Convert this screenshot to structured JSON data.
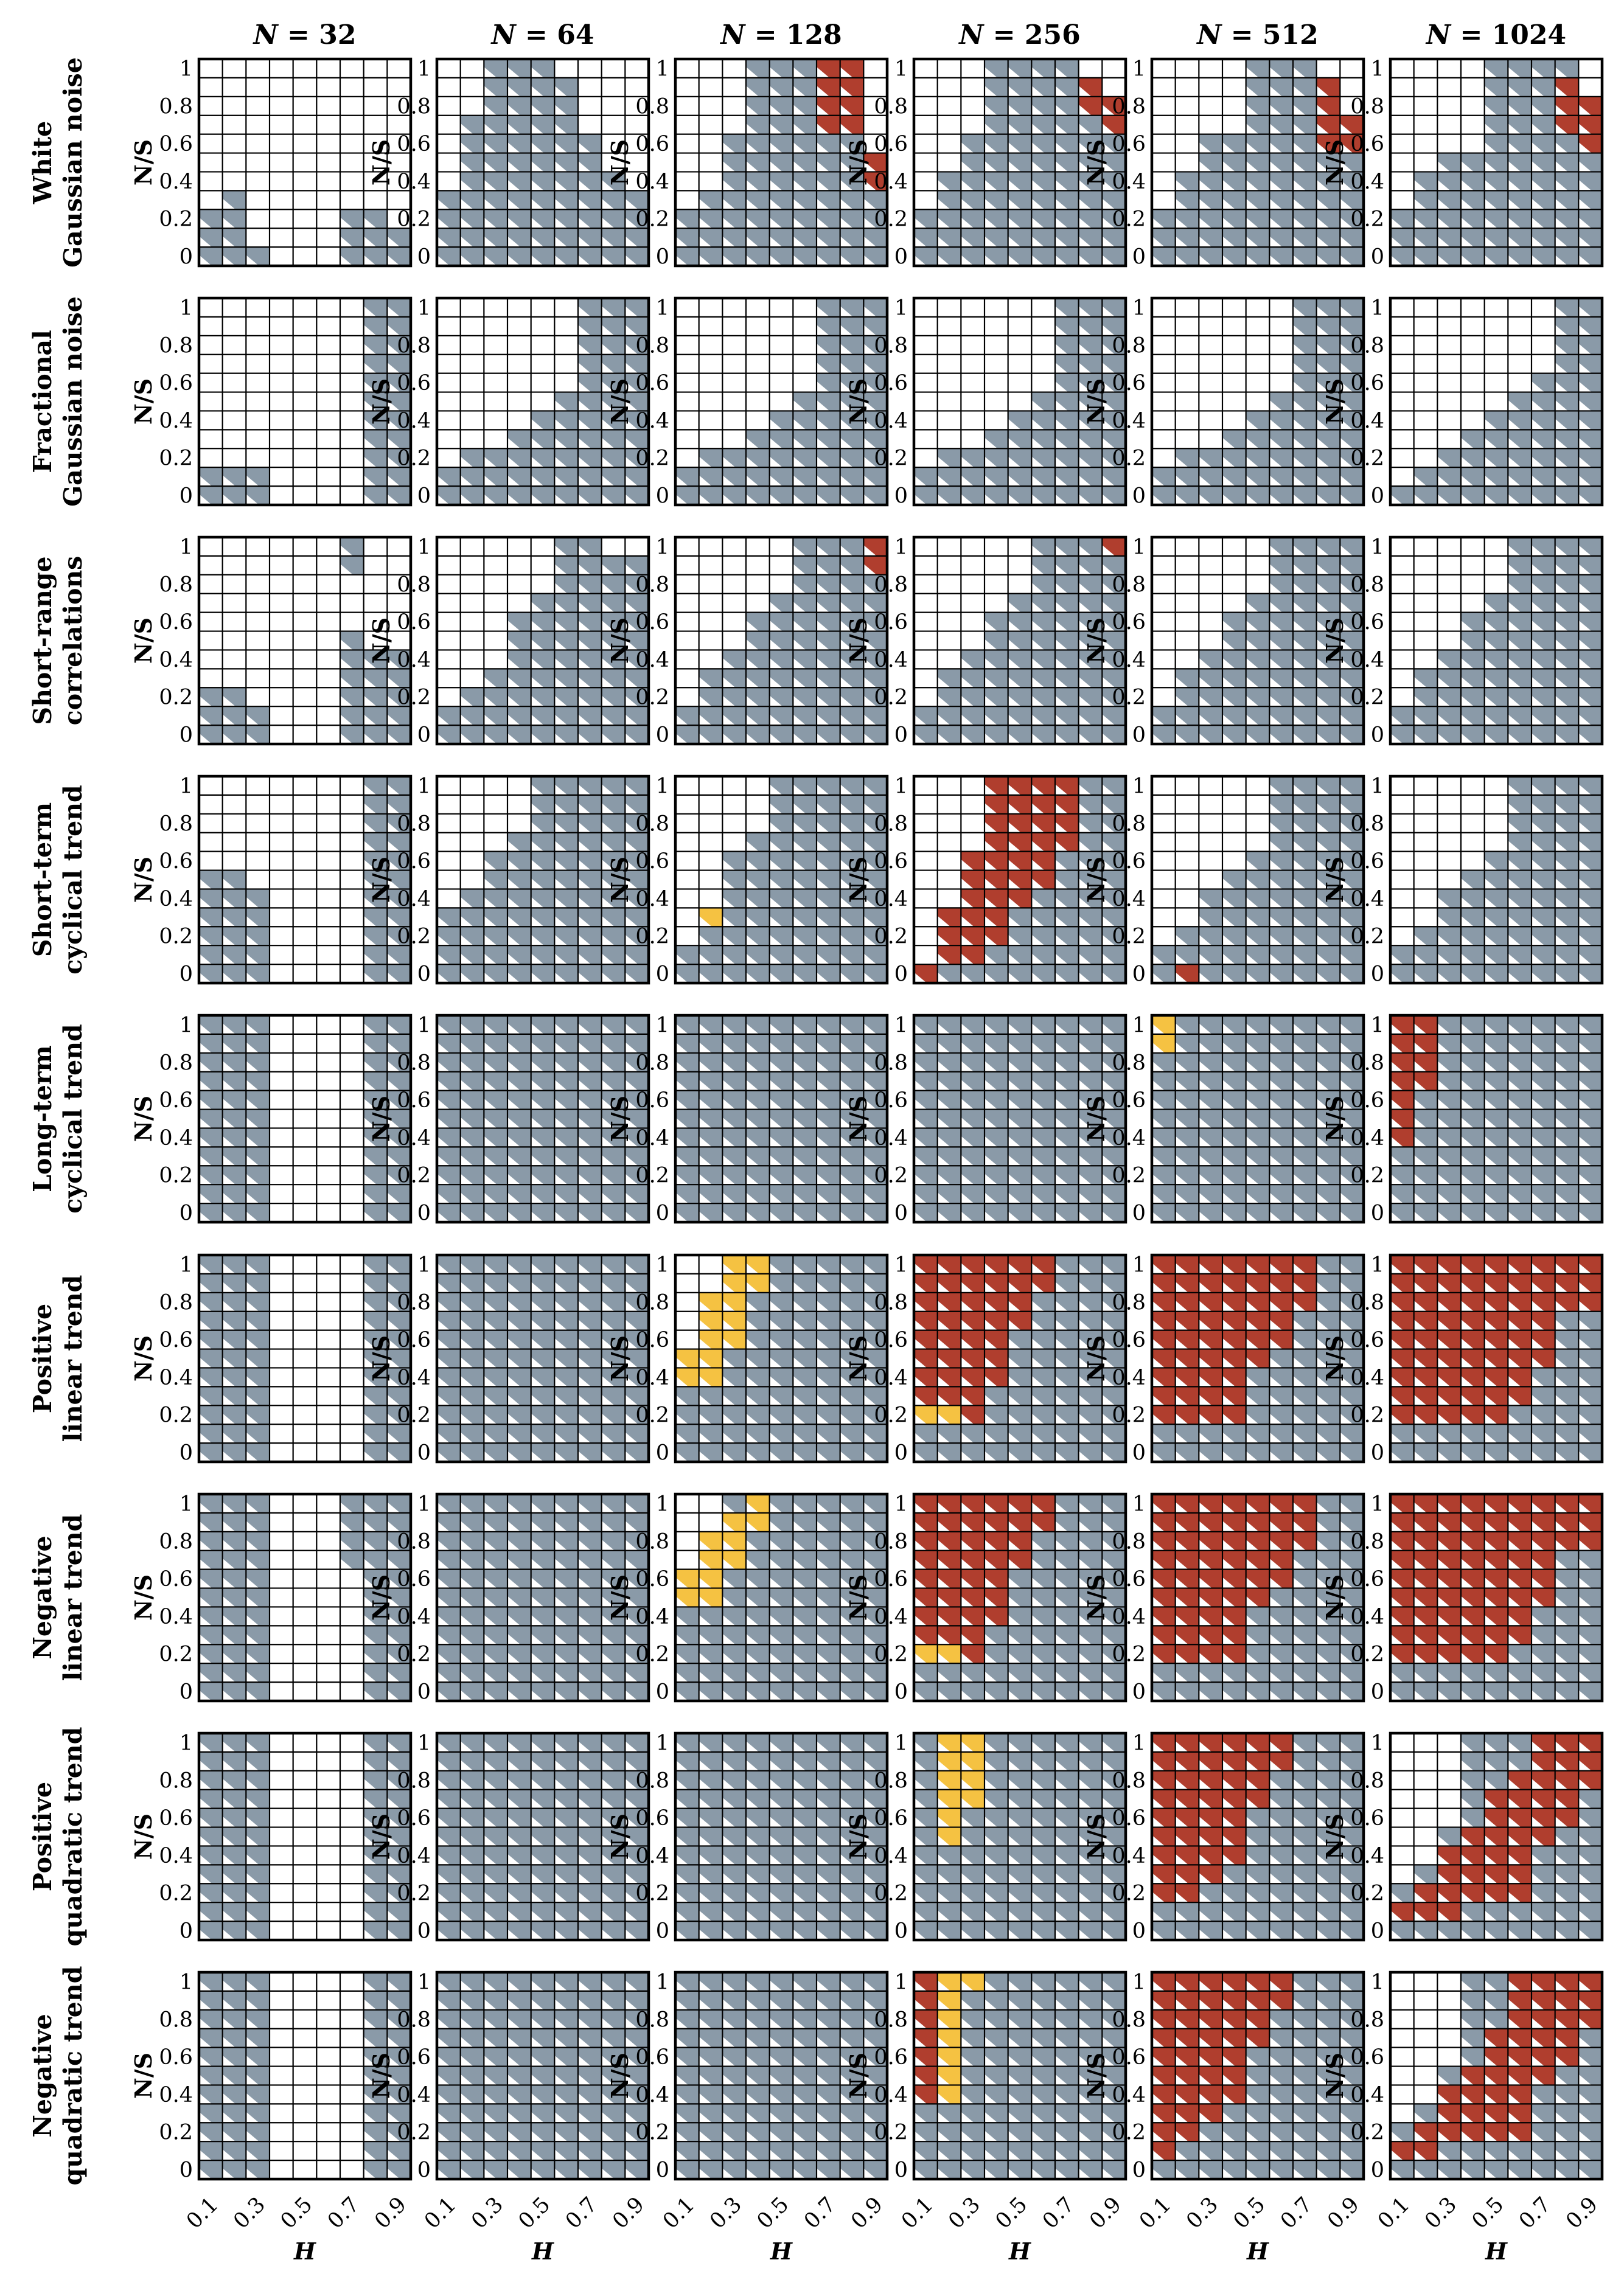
{
  "chart_data": {
    "type": "heatmap",
    "description_axes": {
      "xlabel": "H",
      "ylabel": "N/S"
    },
    "x": [
      0.1,
      0.2,
      0.3,
      0.4,
      0.5,
      0.6,
      0.7,
      0.8,
      0.9
    ],
    "x_tick_labels": [
      "0.1",
      "0.3",
      "0.5",
      "0.7",
      "0.9"
    ],
    "y": [
      0,
      0.1,
      0.2,
      0.3,
      0.4,
      0.5,
      0.6,
      0.7,
      0.8,
      0.9,
      1
    ],
    "y_tick_labels": [
      "0",
      "0.2",
      "0.4",
      "0.6",
      "0.8",
      "1"
    ],
    "columns": [
      "N = 32",
      "N = 64",
      "N = 128",
      "N = 256",
      "N = 512",
      "N = 1024"
    ],
    "rows": [
      [
        "White",
        "Gaussian noise"
      ],
      [
        "Fractional",
        "Gaussian noise"
      ],
      [
        "Short-range",
        "correlations"
      ],
      [
        "Short-term",
        "cyclical trend"
      ],
      [
        "Long-term",
        "cyclical trend"
      ],
      [
        "Positive",
        "linear trend"
      ],
      [
        "Negative",
        "linear trend"
      ],
      [
        "Positive",
        "quadratic trend"
      ],
      [
        "Negative",
        "quadratic trend"
      ]
    ],
    "legend_codes": {
      "0": "empty",
      "1": "blue-grey",
      "2": "red",
      "3": "yellow"
    },
    "colors": {
      "blue": "#8a9aa8",
      "red": "#b03e2e",
      "yellow": "#f5c242",
      "grid": "#000000"
    },
    "cell_encoding": "panels[row][col] = 11 strings (top row N/S = 1 first, bottom row N/S = 0 last); each character = H from 0.1 to 0.9",
    "panels": [
      [
        [
          "000000000",
          "000000000",
          "000000000",
          "000000000",
          "000000000",
          "000000000",
          "000000000",
          "010000000",
          "110000110",
          "110000111",
          "111000111"
        ],
        [
          "001110000",
          "001111000",
          "001111000",
          "011111000",
          "011111100",
          "011111100",
          "011111110",
          "111111111",
          "111111111",
          "111111111",
          "111111111"
        ],
        [
          "000111220",
          "000111220",
          "000111220",
          "000111220",
          "001111110",
          "001111112",
          "001111112",
          "011111111",
          "111111111",
          "111111111",
          "111111111"
        ],
        [
          "000111100",
          "000111120",
          "000111122",
          "000111112",
          "001111111",
          "001111111",
          "011111111",
          "011111111",
          "111111111",
          "111111111",
          "111111111"
        ],
        [
          "000011100",
          "000011120",
          "000011120",
          "000011122",
          "001111122",
          "001111111",
          "011111111",
          "011111111",
          "111111111",
          "111111111",
          "111111111"
        ],
        [
          "000011110",
          "000011120",
          "000011122",
          "000011122",
          "000011112",
          "001111111",
          "011111111",
          "011111111",
          "111111111",
          "111111111",
          "111111111"
        ]
      ],
      [
        [
          "000000011",
          "000000011",
          "000000011",
          "000000011",
          "000000011",
          "000000011",
          "000000011",
          "000000011",
          "000000011",
          "111000011",
          "111000011"
        ],
        [
          "000000111",
          "000000111",
          "000000111",
          "000000111",
          "000000111",
          "000001111",
          "000011111",
          "000111111",
          "011111111",
          "111111111",
          "111111111"
        ],
        [
          "000000111",
          "000000111",
          "000000111",
          "000000111",
          "000000111",
          "000001111",
          "000011111",
          "000111111",
          "011111111",
          "111111111",
          "111111111"
        ],
        [
          "000000111",
          "000000111",
          "000000111",
          "000000111",
          "000000111",
          "000001111",
          "000011111",
          "000111111",
          "011111111",
          "111111111",
          "111111111"
        ],
        [
          "000000111",
          "000000111",
          "000000111",
          "000000111",
          "000000111",
          "000001111",
          "000011111",
          "000111111",
          "011111111",
          "111111111",
          "111111111"
        ],
        [
          "000000011",
          "000000011",
          "000000011",
          "000000011",
          "000000111",
          "000001111",
          "000011111",
          "000111111",
          "001111111",
          "011111111",
          "111111111"
        ]
      ],
      [
        [
          "000000100",
          "000000100",
          "000000000",
          "000000000",
          "000000000",
          "000000100",
          "000000111",
          "000000111",
          "110000111",
          "111000111",
          "111000111"
        ],
        [
          "000001100",
          "000001111",
          "000001111",
          "000011111",
          "000111111",
          "000111111",
          "000111111",
          "001111111",
          "011111111",
          "111111111",
          "111111111"
        ],
        [
          "000001112",
          "000001112",
          "000001111",
          "000011111",
          "000111111",
          "000111111",
          "001111111",
          "011111111",
          "011111111",
          "111111111",
          "111111111"
        ],
        [
          "000001112",
          "000001111",
          "000001111",
          "000011111",
          "000111111",
          "000111111",
          "001111111",
          "011111111",
          "011111111",
          "111111111",
          "111111111"
        ],
        [
          "000001111",
          "000001111",
          "000001111",
          "000011111",
          "000111111",
          "000111111",
          "001111111",
          "011111111",
          "011111111",
          "111111111",
          "111111111"
        ],
        [
          "000001111",
          "000001111",
          "000001111",
          "000011111",
          "000111111",
          "000111111",
          "001111111",
          "011111111",
          "011111111",
          "111111111",
          "111111111"
        ]
      ],
      [
        [
          "000000011",
          "000000011",
          "000000011",
          "000000011",
          "000000011",
          "110000011",
          "111000011",
          "111000011",
          "111000011",
          "111000011",
          "111000011"
        ],
        [
          "000011111",
          "000011111",
          "000011111",
          "000111111",
          "001111111",
          "001111111",
          "011111111",
          "111111111",
          "111111111",
          "111111111",
          "111111111"
        ],
        [
          "000011111",
          "000011111",
          "000011111",
          "000111111",
          "001111111",
          "001111111",
          "001111111",
          "031111111",
          "011111111",
          "111111111",
          "111111111"
        ],
        [
          "000222211",
          "000222211",
          "000222211",
          "000222211",
          "002222111",
          "002222111",
          "002221111",
          "022211111",
          "022211111",
          "022111111",
          "211111111"
        ],
        [
          "000001111",
          "000001111",
          "000001111",
          "000001111",
          "000011111",
          "000111111",
          "001111111",
          "001111111",
          "011111111",
          "111111111",
          "121111111"
        ],
        [
          "000001111",
          "000001111",
          "000001111",
          "000001111",
          "000011111",
          "000111111",
          "001111111",
          "001111111",
          "011111111",
          "111111111",
          "111111111"
        ]
      ],
      [
        [
          "111000011",
          "111000011",
          "111000011",
          "111000011",
          "111000011",
          "111000011",
          "111000011",
          "111000011",
          "111000011",
          "111000011",
          "111000011"
        ],
        [
          "111111111",
          "111111111",
          "111111111",
          "111111111",
          "111111111",
          "111111111",
          "111111111",
          "111111111",
          "111111111",
          "111111111",
          "111111111"
        ],
        [
          "111111111",
          "111111111",
          "111111111",
          "111111111",
          "111111111",
          "111111111",
          "111111111",
          "111111111",
          "111111111",
          "111111111",
          "111111111"
        ],
        [
          "111111111",
          "111111111",
          "111111111",
          "111111111",
          "111111111",
          "111111111",
          "111111111",
          "111111111",
          "111111111",
          "111111111",
          "111111111"
        ],
        [
          "311111111",
          "311111111",
          "111111111",
          "111111111",
          "111111111",
          "111111111",
          "111111111",
          "111111111",
          "111111111",
          "111111111",
          "111111111"
        ],
        [
          "221111111",
          "221111111",
          "221111111",
          "221111111",
          "211111111",
          "211111111",
          "211111111",
          "111111111",
          "111111111",
          "111111111",
          "111111111"
        ]
      ],
      [
        [
          "111000011",
          "111000011",
          "111000011",
          "111000011",
          "111000011",
          "111000011",
          "111000011",
          "111000011",
          "111000011",
          "111000011",
          "111000011"
        ],
        [
          "111111111",
          "111111111",
          "111111111",
          "111111111",
          "111111111",
          "111111111",
          "111111111",
          "111111111",
          "111111111",
          "111111111",
          "111111111"
        ],
        [
          "003311111",
          "003311111",
          "033111111",
          "033111111",
          "033111111",
          "331111111",
          "331111111",
          "111111111",
          "111111111",
          "111111111",
          "111111111"
        ],
        [
          "222222111",
          "222222111",
          "222221111",
          "222221111",
          "222211111",
          "222211111",
          "222211111",
          "222111111",
          "332111111",
          "111111111",
          "111111111"
        ],
        [
          "222222211",
          "222222211",
          "222222211",
          "222222111",
          "222222111",
          "222221111",
          "222211111",
          "222211111",
          "222211111",
          "111111111",
          "111111111"
        ],
        [
          "222222222",
          "222222222",
          "222222222",
          "222222211",
          "222222211",
          "222222211",
          "222222111",
          "222222111",
          "222221111",
          "111111111",
          "111111111"
        ]
      ],
      [
        [
          "111000111",
          "111000111",
          "111000111",
          "111000111",
          "111000011",
          "111000011",
          "111000011",
          "111000011",
          "111000011",
          "111000011",
          "111000011"
        ],
        [
          "111111111",
          "111111111",
          "111111111",
          "111111111",
          "111111111",
          "111111111",
          "111111111",
          "111111111",
          "111111111",
          "111111111",
          "111111111"
        ],
        [
          "001311111",
          "003311111",
          "033111111",
          "033111111",
          "331111111",
          "331111111",
          "111111111",
          "111111111",
          "111111111",
          "111111111",
          "111111111"
        ],
        [
          "222222111",
          "222222111",
          "222221111",
          "222221111",
          "222211111",
          "222211111",
          "222211111",
          "222111111",
          "332111111",
          "111111111",
          "111111111"
        ],
        [
          "222222211",
          "222222211",
          "222222211",
          "222222111",
          "222222111",
          "222221111",
          "222211111",
          "222211111",
          "222211111",
          "111111111",
          "111111111"
        ],
        [
          "222222222",
          "222222222",
          "222222222",
          "222222211",
          "222222211",
          "222222211",
          "222222111",
          "222222111",
          "222221111",
          "111111111",
          "111111111"
        ]
      ],
      [
        [
          "111000011",
          "111000011",
          "111000011",
          "111000011",
          "111000011",
          "111000011",
          "111000011",
          "111000011",
          "111000011",
          "111000011",
          "111000011"
        ],
        [
          "111111111",
          "111111111",
          "111111111",
          "111111111",
          "111111111",
          "111111111",
          "111111111",
          "111111111",
          "111111111",
          "111111111",
          "111111111"
        ],
        [
          "111111111",
          "111111111",
          "111111111",
          "111111111",
          "111111111",
          "111111111",
          "111111111",
          "111111111",
          "111111111",
          "111111111",
          "111111111"
        ],
        [
          "133111111",
          "133111111",
          "133111111",
          "133111111",
          "131111111",
          "131111111",
          "111111111",
          "111111111",
          "111111111",
          "111111111",
          "111111111"
        ],
        [
          "222222111",
          "222222111",
          "222221111",
          "222221111",
          "222211111",
          "222211111",
          "222211111",
          "222111111",
          "221111111",
          "111111111",
          "111111111"
        ],
        [
          "000111222",
          "000111222",
          "000112222",
          "000122221",
          "000122221",
          "001222211",
          "002222111",
          "012222111",
          "122222111",
          "222111111",
          "111111111"
        ]
      ],
      [
        [
          "111000011",
          "111000011",
          "111000011",
          "111000011",
          "111000011",
          "111000011",
          "111000011",
          "111000011",
          "111000011",
          "111000011",
          "111000011"
        ],
        [
          "111111111",
          "111111111",
          "111111111",
          "111111111",
          "111111111",
          "111111111",
          "111111111",
          "111111111",
          "111111111",
          "111111111",
          "111111111"
        ],
        [
          "111111111",
          "111111111",
          "111111111",
          "111111111",
          "111111111",
          "111111111",
          "111111111",
          "111111111",
          "111111111",
          "111111111",
          "111111111"
        ],
        [
          "233111111",
          "231111111",
          "231111111",
          "231111111",
          "231111111",
          "231111111",
          "231111111",
          "111111111",
          "111111111",
          "111111111",
          "111111111"
        ],
        [
          "222222111",
          "222222111",
          "222221111",
          "222221111",
          "222211111",
          "222211111",
          "222211111",
          "222111111",
          "221111111",
          "211111111",
          "111111111"
        ],
        [
          "000112222",
          "000112222",
          "000112222",
          "000122221",
          "000122221",
          "001222211",
          "002222111",
          "012222111",
          "122222111",
          "221111111",
          "111111111"
        ]
      ]
    ]
  }
}
